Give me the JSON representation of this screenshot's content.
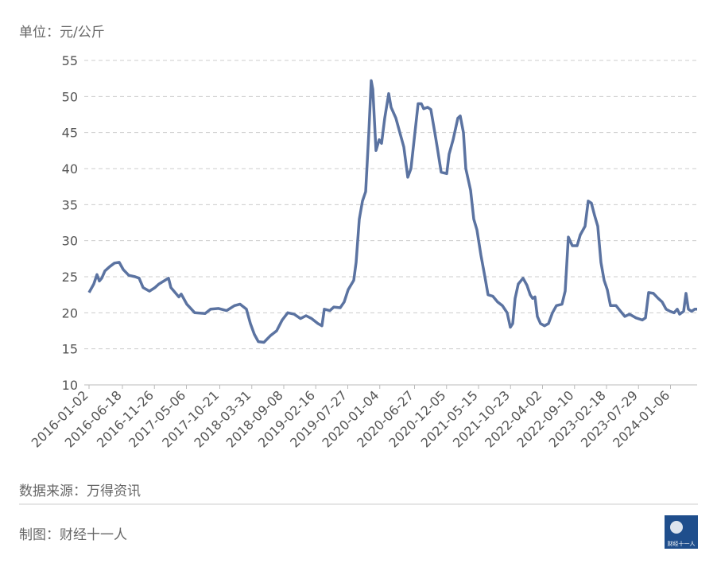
{
  "chart_data": {
    "type": "line",
    "unit_label": "单位：元/公斤",
    "source": "数据来源：万得资讯",
    "credit": "制图：财经十一人",
    "logo_text": "财经十一人",
    "color": "#5b73a1",
    "grid": true,
    "ylim": [
      10,
      55
    ],
    "yticks": [
      10,
      15,
      20,
      25,
      30,
      35,
      40,
      45,
      50,
      55
    ],
    "xlim": [
      "2016-01-02",
      "2024-05-19"
    ],
    "xticks": [
      "2016-01-02",
      "2016-06-18",
      "2016-11-26",
      "2017-05-06",
      "2017-10-21",
      "2018-03-31",
      "2018-09-08",
      "2019-02-16",
      "2019-07-27",
      "2020-01-04",
      "2020-06-27",
      "2020-12-05",
      "2021-05-15",
      "2021-10-23",
      "2022-04-02",
      "2022-09-10",
      "2023-02-18",
      "2023-07-29",
      "2024-01-06"
    ],
    "x": [
      "2016-01-02",
      "2016-01-26",
      "2016-02-11",
      "2016-02-23",
      "2016-03-06",
      "2016-03-22",
      "2016-04-15",
      "2016-05-09",
      "2016-06-02",
      "2016-06-22",
      "2016-07-20",
      "2016-08-21",
      "2016-09-10",
      "2016-09-30",
      "2016-11-01",
      "2016-11-29",
      "2016-12-19",
      "2017-02-05",
      "2017-02-17",
      "2017-03-29",
      "2017-04-10",
      "2017-05-08",
      "2017-06-17",
      "2017-08-08",
      "2017-09-05",
      "2017-10-15",
      "2017-11-24",
      "2018-01-03",
      "2018-01-31",
      "2018-03-04",
      "2018-03-24",
      "2018-04-13",
      "2018-05-03",
      "2018-05-31",
      "2018-07-02",
      "2018-08-03",
      "2018-08-31",
      "2018-09-28",
      "2018-10-30",
      "2018-12-01",
      "2018-12-29",
      "2019-01-26",
      "2019-02-27",
      "2019-03-19",
      "2019-03-31",
      "2019-04-28",
      "2019-05-18",
      "2019-06-19",
      "2019-07-09",
      "2019-07-29",
      "2019-08-26",
      "2019-09-07",
      "2019-09-23",
      "2019-10-09",
      "2019-10-25",
      "2019-11-10",
      "2019-11-22",
      "2019-11-30",
      "2019-12-16",
      "2020-01-01",
      "2020-01-13",
      "2020-01-29",
      "2020-02-18",
      "2020-03-01",
      "2020-03-25",
      "2020-04-14",
      "2020-05-04",
      "2020-05-24",
      "2020-06-09",
      "2020-06-25",
      "2020-07-15",
      "2020-07-31",
      "2020-08-12",
      "2020-09-01",
      "2020-09-17",
      "2020-10-07",
      "2020-10-19",
      "2020-11-08",
      "2020-12-06",
      "2020-12-18",
      "2021-01-07",
      "2021-01-31",
      "2021-02-12",
      "2021-02-28",
      "2021-03-12",
      "2021-04-05",
      "2021-04-21",
      "2021-05-07",
      "2021-05-27",
      "2021-06-16",
      "2021-07-02",
      "2021-07-26",
      "2021-08-19",
      "2021-09-12",
      "2021-10-06",
      "2021-10-22",
      "2021-11-03",
      "2021-11-15",
      "2021-12-01",
      "2021-12-25",
      "2022-01-14",
      "2022-01-30",
      "2022-02-11",
      "2022-02-23",
      "2022-03-07",
      "2022-03-23",
      "2022-04-12",
      "2022-05-02",
      "2022-05-22",
      "2022-06-11",
      "2022-07-09",
      "2022-07-25",
      "2022-08-10",
      "2022-08-30",
      "2022-09-23",
      "2022-10-09",
      "2022-11-02",
      "2022-11-18",
      "2022-12-04",
      "2022-12-20",
      "2023-01-05",
      "2023-01-21",
      "2023-02-06",
      "2023-02-22",
      "2023-03-10",
      "2023-04-07",
      "2023-04-27",
      "2023-05-21",
      "2023-06-14",
      "2023-07-16",
      "2023-08-17",
      "2023-09-02",
      "2023-09-18",
      "2023-10-12",
      "2023-11-05",
      "2023-11-25",
      "2023-12-15",
      "2024-01-04",
      "2024-01-24",
      "2024-02-09",
      "2024-02-21",
      "2024-03-12",
      "2024-03-24",
      "2024-04-05",
      "2024-04-21",
      "2024-05-07",
      "2024-05-19"
    ],
    "values": [
      22.8,
      24,
      25.3,
      24.4,
      24.8,
      25.8,
      26.4,
      26.9,
      27,
      26,
      25.2,
      25,
      24.8,
      23.5,
      23,
      23.5,
      24,
      24.8,
      23.5,
      22.2,
      22.6,
      21.2,
      20,
      19.9,
      20.5,
      20.6,
      20.3,
      21,
      21.2,
      20.5,
      18.5,
      17,
      16,
      15.9,
      16.8,
      17.5,
      19,
      20,
      19.8,
      19.2,
      19.6,
      19.2,
      18.5,
      18.2,
      20.5,
      20.3,
      20.8,
      20.7,
      21.5,
      23.2,
      24.5,
      27,
      33,
      35.5,
      36.8,
      45,
      52.2,
      51,
      42.5,
      44,
      43.5,
      47,
      50.4,
      48.5,
      47,
      45,
      43,
      38.8,
      40,
      44,
      49,
      49,
      48.3,
      48.5,
      48.2,
      45,
      43,
      39.5,
      39.3,
      42,
      44,
      47,
      47.3,
      45,
      40,
      37,
      33,
      31.5,
      28,
      25,
      22.5,
      22.3,
      21.5,
      21,
      20,
      18,
      18.5,
      22,
      24,
      24.8,
      23.8,
      22.5,
      22,
      22.2,
      19.5,
      18.5,
      18.2,
      18.5,
      20,
      21,
      21.2,
      23,
      30.5,
      29.3,
      29.3,
      30.8,
      32,
      35.5,
      35.2,
      33.5,
      32,
      27,
      24.5,
      23.2,
      21,
      21,
      20.3,
      19.5,
      19.8,
      19.3,
      19,
      19.3,
      22.8,
      22.7,
      22,
      21.5,
      20.5,
      20.2,
      20,
      20.5,
      19.8,
      20.2,
      22.7,
      20.5,
      20.2,
      20.5,
      20.5
    ]
  }
}
